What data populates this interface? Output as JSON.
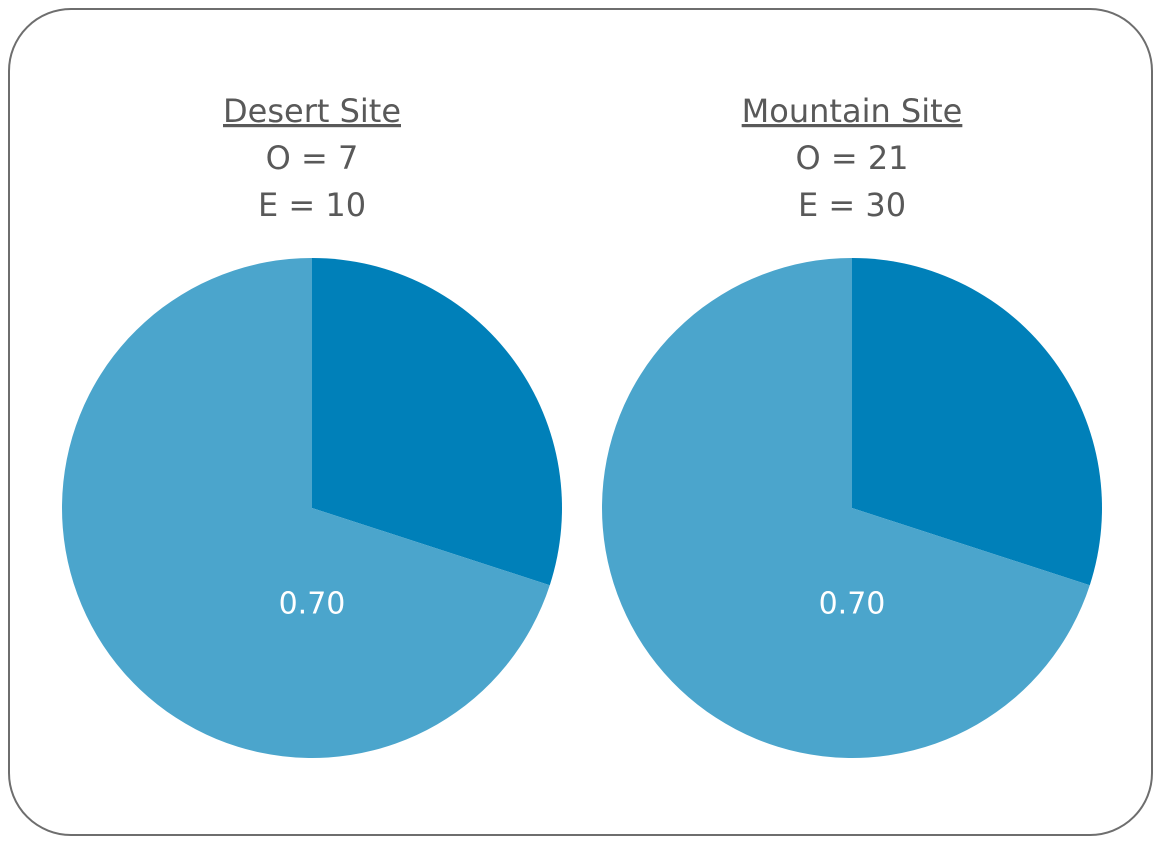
{
  "chart_data": [
    {
      "type": "pie",
      "title": "Desert Site",
      "annotations": [
        "O = 7",
        "E = 10"
      ],
      "values": [
        0.3,
        0.7
      ],
      "value_labels": [
        null,
        "0.70"
      ],
      "colors": [
        "#0080b9",
        "#4ba5cc"
      ]
    },
    {
      "type": "pie",
      "title": "Mountain Site",
      "annotations": [
        "O = 21",
        "E = 30"
      ],
      "values": [
        0.3,
        0.7
      ],
      "value_labels": [
        null,
        "0.70"
      ],
      "colors": [
        "#0080b9",
        "#4ba5cc"
      ]
    }
  ]
}
